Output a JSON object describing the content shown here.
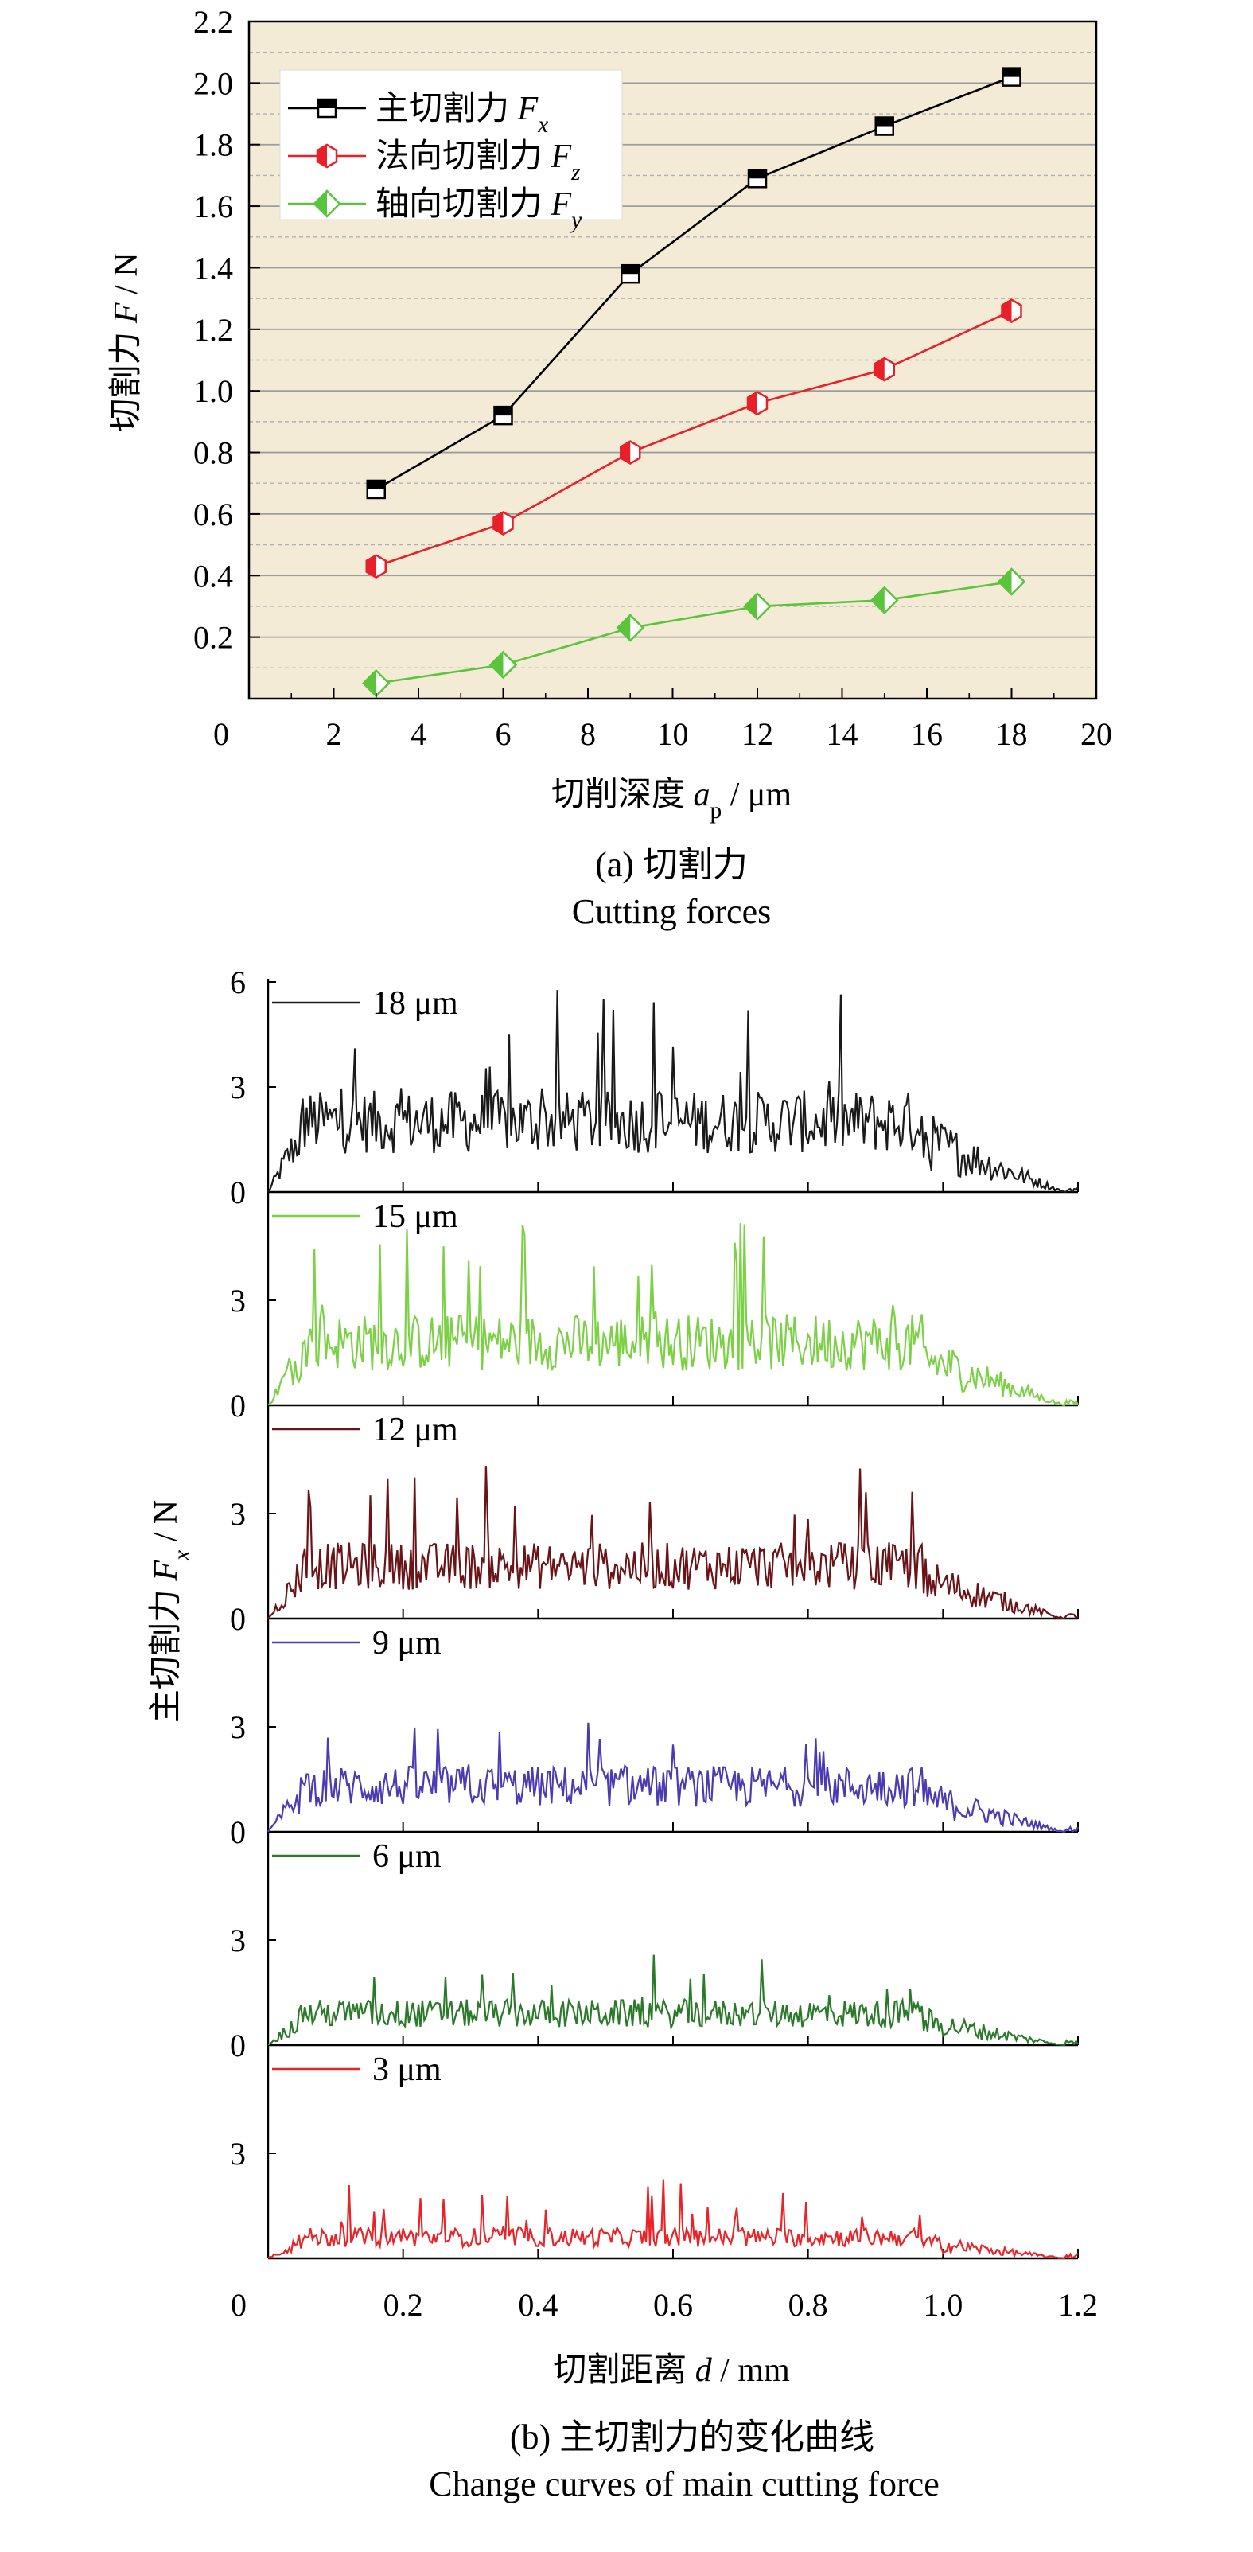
{
  "chart_data": [
    {
      "type": "line",
      "ylabel": "切割力 F / N",
      "xlabel": "切削深度 a_p / μm",
      "xlim": [
        0,
        20
      ],
      "ylim": [
        0,
        2.2
      ],
      "x_ticks": [
        "0",
        "2",
        "4",
        "6",
        "8",
        "10",
        "12",
        "14",
        "16",
        "18",
        "20"
      ],
      "y_ticks": [
        "0.2",
        "0.4",
        "0.6",
        "0.8",
        "1.0",
        "1.2",
        "1.4",
        "1.6",
        "1.8",
        "2.0",
        "2.2"
      ],
      "grid": true,
      "legend_position": "top-left",
      "background_color": "#f4ebd6",
      "x": [
        3,
        6,
        9,
        12,
        15,
        18
      ],
      "series": [
        {
          "name": "主切割力 F_x",
          "color": "#000000",
          "marker": "half-square",
          "values": [
            0.68,
            0.92,
            1.38,
            1.69,
            1.86,
            2.02
          ]
        },
        {
          "name": "法向切割力 F_z",
          "color": "#e8202a",
          "marker": "half-hexagon",
          "values": [
            0.43,
            0.57,
            0.8,
            0.96,
            1.07,
            1.26
          ]
        },
        {
          "name": "轴向切割力 F_y",
          "color": "#5cc43c",
          "marker": "half-diamond",
          "values": [
            0.05,
            0.11,
            0.23,
            0.3,
            0.32,
            0.38
          ]
        }
      ],
      "caption": {
        "line1": "(a) 切割力",
        "line2": "Cutting forces"
      }
    },
    {
      "type": "line",
      "ylabel": "主切割力 F_x / N",
      "xlabel": "切割距离 d / mm",
      "xlim": [
        0,
        1.2
      ],
      "x_ticks": [
        "0",
        "0.2",
        "0.4",
        "0.6",
        "0.8",
        "1.0",
        "1.2"
      ],
      "panel_y_ticks": [
        "0",
        "3",
        "6"
      ],
      "panel_ylim": [
        0,
        6
      ],
      "signal_model": {
        "cut_end_mm": 0.97,
        "tail_end_mm": 1.18
      },
      "series": [
        {
          "name": "18 μm",
          "color": "#1a1a1a",
          "mean": 2.0,
          "peak": 5.8
        },
        {
          "name": "15 μm",
          "color": "#7cd046",
          "mean": 1.8,
          "peak": 5.4
        },
        {
          "name": "12 μm",
          "color": "#6a1418",
          "mean": 1.5,
          "peak": 4.4
        },
        {
          "name": "9 μm",
          "color": "#4a3cb0",
          "mean": 1.3,
          "peak": 3.2
        },
        {
          "name": "6 μm",
          "color": "#2a7a2a",
          "mean": 0.9,
          "peak": 2.6
        },
        {
          "name": "3 μm",
          "color": "#e82428",
          "mean": 0.6,
          "peak": 2.3
        }
      ],
      "caption": {
        "line1": "(b) 主切割力的变化曲线",
        "line2": "Change curves of main cutting force"
      }
    }
  ]
}
